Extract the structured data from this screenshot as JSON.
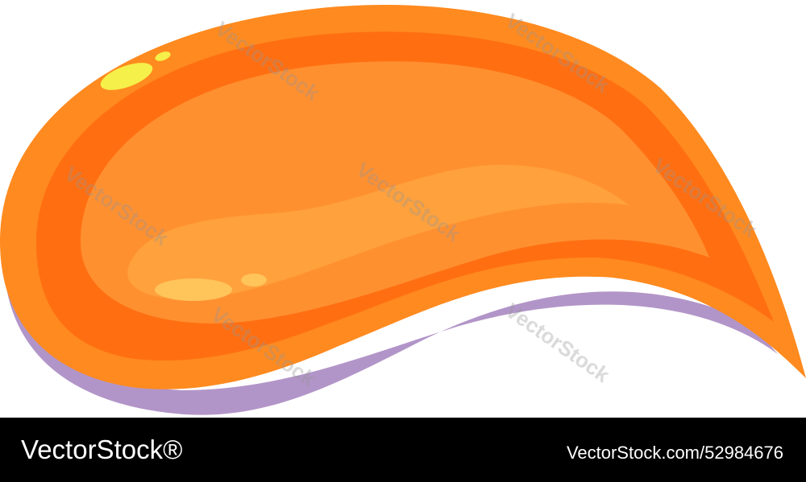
{
  "watermark": "VectorStock",
  "footer": {
    "brand": "VectorStock®",
    "id": "VectorStock.com/52984676"
  }
}
